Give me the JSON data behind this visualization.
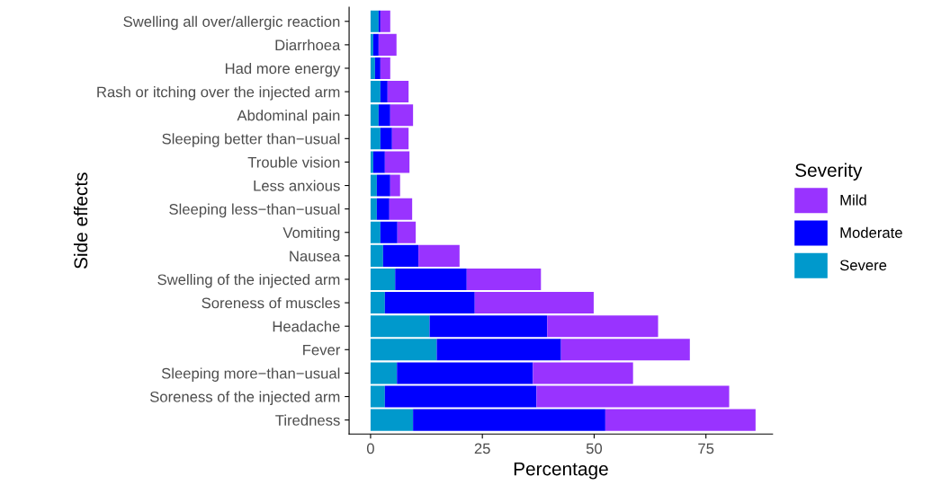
{
  "chart_data": {
    "type": "bar",
    "orientation": "horizontal",
    "stacked": true,
    "xlabel": "Percentage",
    "ylabel": "Side effects",
    "legend_title": "Severity",
    "legend": "right",
    "grid": false,
    "categories": [
      "Swelling all over/allergic reaction",
      "Diarrhoea",
      "Had more energy",
      "Rash or itching over the injected arm",
      "Abdominal pain",
      "Sleeping better than−usual",
      "Trouble vision",
      "Less anxious",
      "Sleeping less−than−usual",
      "Vomiting",
      "Nausea",
      "Swelling of the injected arm",
      "Soreness of muscles",
      "Headache",
      "Fever",
      "Sleeping more−than−usual",
      "Soreness of the injected arm",
      "Tiredness"
    ],
    "xlim": [
      -4.8,
      89.9
    ],
    "xticks": [
      0,
      25,
      50,
      75
    ],
    "series": [
      {
        "name": "Severe",
        "color": "#0099cc",
        "values": [
          1.8,
          0.6,
          1.0,
          2.2,
          1.8,
          2.2,
          0.6,
          1.4,
          1.4,
          2.2,
          2.8,
          5.5,
          3.2,
          13.2,
          14.8,
          5.9,
          3.2,
          9.5
        ]
      },
      {
        "name": "Moderate",
        "color": "#0000ff",
        "values": [
          0.4,
          1.2,
          1.2,
          1.6,
          2.6,
          2.6,
          2.6,
          3.0,
          2.8,
          3.8,
          7.9,
          16.0,
          20.1,
          26.3,
          27.8,
          30.4,
          33.9,
          43.0
        ]
      },
      {
        "name": "Mild",
        "color": "#9933ff",
        "values": [
          2.2,
          4.0,
          2.2,
          4.7,
          5.1,
          3.7,
          5.5,
          2.2,
          5.1,
          4.1,
          9.2,
          16.6,
          26.6,
          24.8,
          28.8,
          22.4,
          43.1,
          33.6
        ]
      }
    ]
  }
}
